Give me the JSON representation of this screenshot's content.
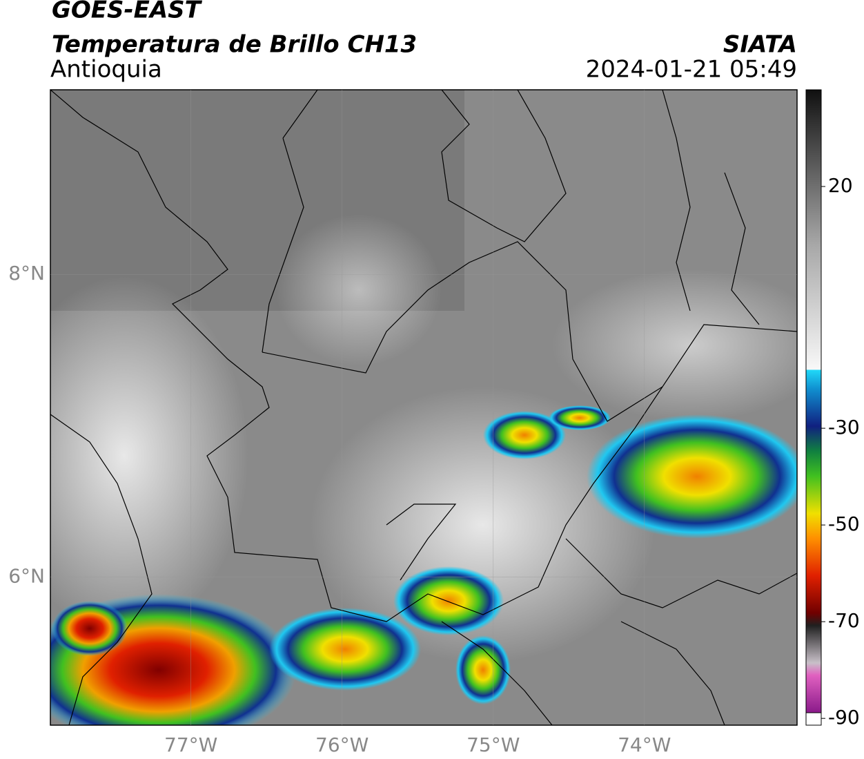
{
  "header": {
    "title": "GOES-EAST",
    "subtitle": "Temperatura de Brillo CH13",
    "region": "Antioquia",
    "source": "SIATA",
    "timestamp": "2024-01-21 05:49"
  },
  "map": {
    "xlim": [
      -77.93,
      -72.99
    ],
    "ylim": [
      5.02,
      9.22
    ],
    "xticks": [
      {
        "value": -77,
        "label": "77°W"
      },
      {
        "value": -76,
        "label": "76°W"
      },
      {
        "value": -75,
        "label": "75°W"
      },
      {
        "value": -74,
        "label": "74°W"
      }
    ],
    "yticks": [
      {
        "value": 8,
        "label": "8°N"
      },
      {
        "value": 6,
        "label": "6°N"
      }
    ],
    "grid": true
  },
  "colorbar": {
    "lim": [
      -91.4,
      40
    ],
    "ticks": [
      20,
      -30,
      -50,
      -70,
      -90
    ]
  }
}
